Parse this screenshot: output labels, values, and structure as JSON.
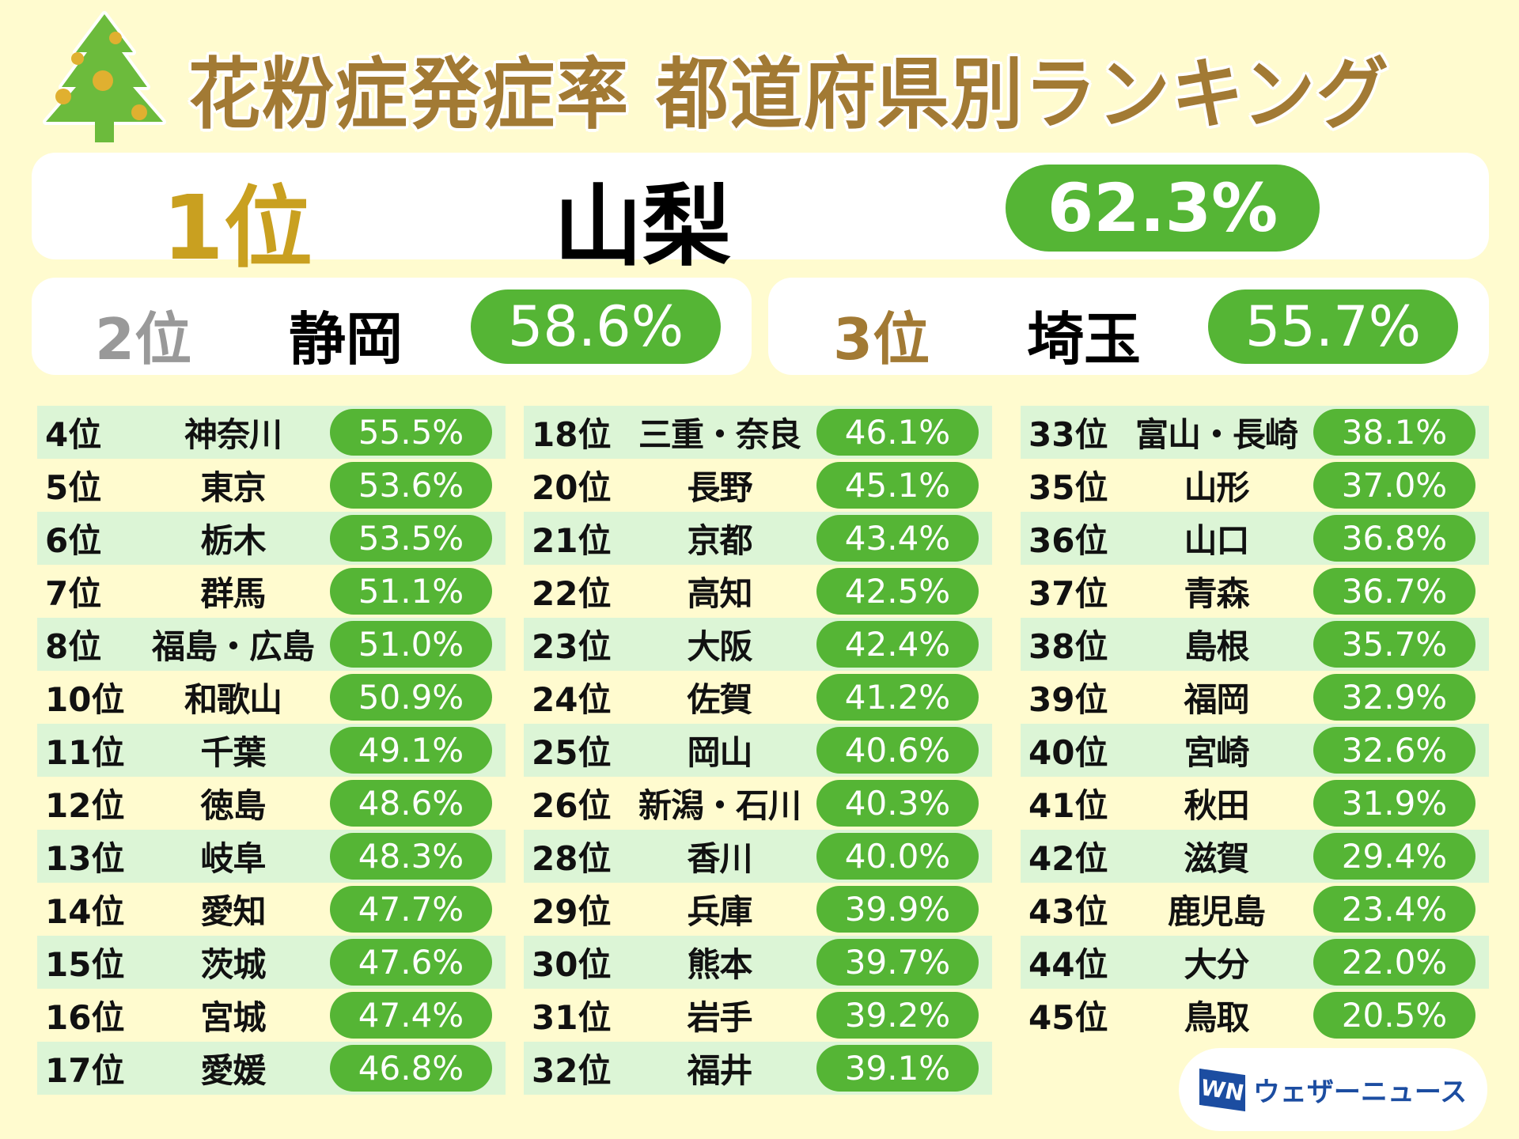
{
  "title": "花粉症発症率 都道府県別ランキング",
  "colors": {
    "background": "#fffbcf",
    "pill": "#55b535",
    "row_shade": "#dcf5d6",
    "title": "#a27a34",
    "rank1": "#c9a020",
    "rank2": "#999999",
    "rank3": "#a27a34"
  },
  "top3": [
    {
      "rank": "1位",
      "name": "山梨",
      "value": "62.3%"
    },
    {
      "rank": "2位",
      "name": "静岡",
      "value": "58.6%"
    },
    {
      "rank": "3位",
      "name": "埼玉",
      "value": "55.7%"
    }
  ],
  "columns": [
    [
      {
        "rank": "4位",
        "name": "神奈川",
        "value": "55.5%"
      },
      {
        "rank": "5位",
        "name": "東京",
        "value": "53.6%"
      },
      {
        "rank": "6位",
        "name": "栃木",
        "value": "53.5%"
      },
      {
        "rank": "7位",
        "name": "群馬",
        "value": "51.1%"
      },
      {
        "rank": "8位",
        "name": "福島・広島",
        "value": "51.0%"
      },
      {
        "rank": "10位",
        "name": "和歌山",
        "value": "50.9%"
      },
      {
        "rank": "11位",
        "name": "千葉",
        "value": "49.1%"
      },
      {
        "rank": "12位",
        "name": "徳島",
        "value": "48.6%"
      },
      {
        "rank": "13位",
        "name": "岐阜",
        "value": "48.3%"
      },
      {
        "rank": "14位",
        "name": "愛知",
        "value": "47.7%"
      },
      {
        "rank": "15位",
        "name": "茨城",
        "value": "47.6%"
      },
      {
        "rank": "16位",
        "name": "宮城",
        "value": "47.4%"
      },
      {
        "rank": "17位",
        "name": "愛媛",
        "value": "46.8%"
      }
    ],
    [
      {
        "rank": "18位",
        "name": "三重・奈良",
        "value": "46.1%"
      },
      {
        "rank": "20位",
        "name": "長野",
        "value": "45.1%"
      },
      {
        "rank": "21位",
        "name": "京都",
        "value": "43.4%"
      },
      {
        "rank": "22位",
        "name": "高知",
        "value": "42.5%"
      },
      {
        "rank": "23位",
        "name": "大阪",
        "value": "42.4%"
      },
      {
        "rank": "24位",
        "name": "佐賀",
        "value": "41.2%"
      },
      {
        "rank": "25位",
        "name": "岡山",
        "value": "40.6%"
      },
      {
        "rank": "26位",
        "name": "新潟・石川",
        "value": "40.3%"
      },
      {
        "rank": "28位",
        "name": "香川",
        "value": "40.0%"
      },
      {
        "rank": "29位",
        "name": "兵庫",
        "value": "39.9%"
      },
      {
        "rank": "30位",
        "name": "熊本",
        "value": "39.7%"
      },
      {
        "rank": "31位",
        "name": "岩手",
        "value": "39.2%"
      },
      {
        "rank": "32位",
        "name": "福井",
        "value": "39.1%"
      }
    ],
    [
      {
        "rank": "33位",
        "name": "富山・長崎",
        "value": "38.1%"
      },
      {
        "rank": "35位",
        "name": "山形",
        "value": "37.0%"
      },
      {
        "rank": "36位",
        "name": "山口",
        "value": "36.8%"
      },
      {
        "rank": "37位",
        "name": "青森",
        "value": "36.7%"
      },
      {
        "rank": "38位",
        "name": "島根",
        "value": "35.7%"
      },
      {
        "rank": "39位",
        "name": "福岡",
        "value": "32.9%"
      },
      {
        "rank": "40位",
        "name": "宮崎",
        "value": "32.6%"
      },
      {
        "rank": "41位",
        "name": "秋田",
        "value": "31.9%"
      },
      {
        "rank": "42位",
        "name": "滋賀",
        "value": "29.4%"
      },
      {
        "rank": "43位",
        "name": "鹿児島",
        "value": "23.4%"
      },
      {
        "rank": "44位",
        "name": "大分",
        "value": "22.0%"
      },
      {
        "rank": "45位",
        "name": "鳥取",
        "value": "20.5%"
      }
    ]
  ],
  "logo": {
    "mark": "WN",
    "text": "ウェザーニュース"
  }
}
